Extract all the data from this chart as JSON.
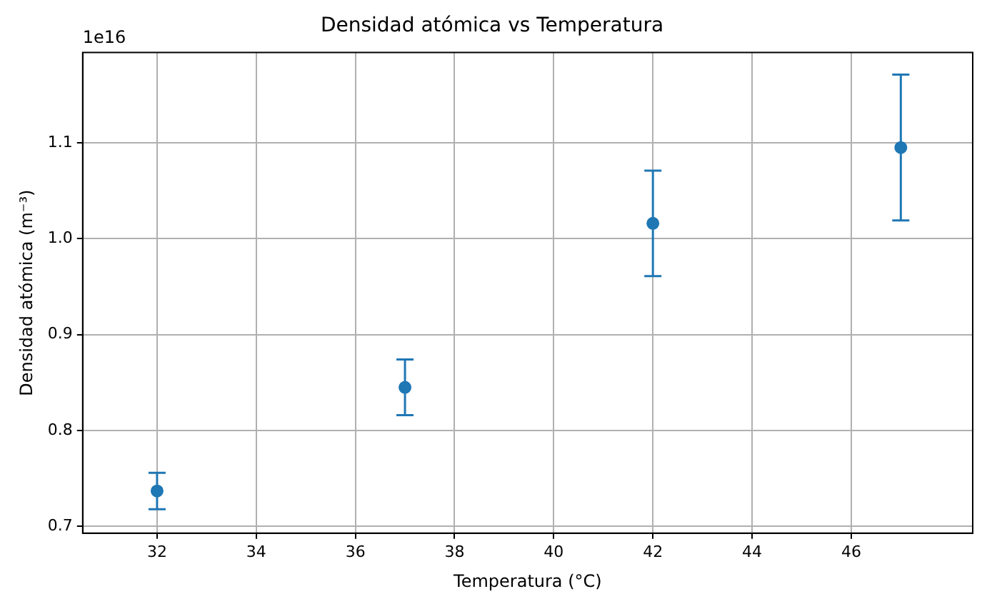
{
  "chart_data": {
    "type": "scatter",
    "title": "Densidad atómica vs Temperatura",
    "xlabel": "Temperatura (°C)",
    "ylabel": "Densidad atómica (m⁻³)",
    "annotations": [
      "1e16"
    ],
    "x": [
      32,
      37,
      42,
      47
    ],
    "series": [
      {
        "color": "#1f77b4",
        "values": [
          0.737,
          0.845,
          1.016,
          1.095
        ],
        "errors": [
          0.019,
          0.029,
          0.055,
          0.076
        ]
      }
    ],
    "xlim": [
      30.5,
      48.45
    ],
    "xticks": [
      32,
      34,
      36,
      38,
      40,
      42,
      44,
      46
    ],
    "ylim": [
      0.693,
      1.194
    ],
    "yticks": [
      {
        "value": 0.7,
        "label": "0.7"
      },
      {
        "value": 0.8,
        "label": "0.8"
      },
      {
        "value": 0.9,
        "label": "0.9"
      },
      {
        "value": 1,
        "label": "1.0"
      },
      {
        "value": 1.1,
        "label": "1.1"
      }
    ],
    "grid": true,
    "marker": "circle",
    "legend": false
  }
}
